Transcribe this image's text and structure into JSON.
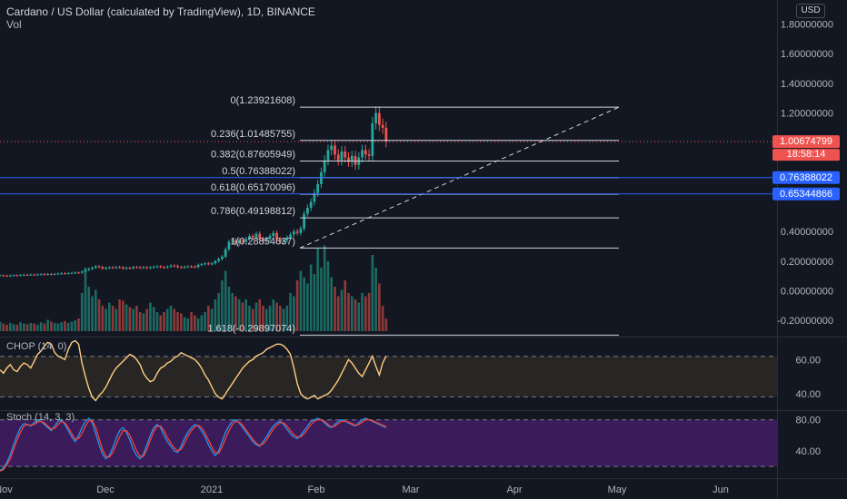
{
  "header": {
    "title": "Cardano / US Dollar (calculated by TradingView), 1D, BINANCE",
    "vol_label": "Vol",
    "currency": "USD"
  },
  "colors": {
    "background": "#131722",
    "up": "#26a69a",
    "down": "#ef5350",
    "blue_line": "#2962ff",
    "choppiness": "#ffcc80",
    "stoch_k": "#2196f3",
    "stoch_d": "#f44336",
    "stoch_band": "#4a1e6e"
  },
  "price_badges": {
    "last_price": "1.00674799",
    "countdown": "18:58:14",
    "level1": "0.76388022",
    "level2": "0.65344866"
  },
  "indicators": {
    "chop_label": "CHOP (14, 0)",
    "stoch_label": "Stoch (14, 3, 3)"
  },
  "chart_data": [
    {
      "type": "candlestick",
      "symbol": "ADAUSD",
      "interval": "1D",
      "ylim": [
        -0.3,
        1.9
      ],
      "y_ticks": [
        "1.80000000",
        "1.60000000",
        "1.40000000",
        "1.20000000",
        "0.40000000",
        "0.20000000",
        "0.00000000",
        "-0.20000000"
      ],
      "x_ticks": [
        "Nov",
        "Dec",
        "2021",
        "Feb",
        "Mar",
        "Apr",
        "May",
        "Jun"
      ],
      "fib_levels": [
        {
          "label": "0(1.23921608)",
          "value": 1.23921608
        },
        {
          "label": "0.236(1.01485755)",
          "value": 1.01485755
        },
        {
          "label": "0.382(0.87605949)",
          "value": 0.87605949
        },
        {
          "label": "0.5(0.76388022)",
          "value": 0.76388022
        },
        {
          "label": "0.618(0.65170096)",
          "value": 0.65170096
        },
        {
          "label": "0.786(0.49198812)",
          "value": 0.49198812
        },
        {
          "label": "1(0.28854637)",
          "value": 0.28854637
        },
        {
          "label": "1.618(-0.29897074)",
          "value": -0.29897074
        }
      ],
      "horizontal_lines": [
        0.76388022,
        0.65344866
      ],
      "last_price": 1.00674799,
      "closes": [
        0.104,
        0.102,
        0.101,
        0.103,
        0.105,
        0.104,
        0.106,
        0.108,
        0.107,
        0.109,
        0.108,
        0.11,
        0.112,
        0.111,
        0.113,
        0.112,
        0.114,
        0.116,
        0.118,
        0.117,
        0.119,
        0.121,
        0.123,
        0.122,
        0.13,
        0.14,
        0.148,
        0.156,
        0.165,
        0.16,
        0.15,
        0.155,
        0.158,
        0.155,
        0.16,
        0.158,
        0.15,
        0.155,
        0.152,
        0.16,
        0.158,
        0.156,
        0.159,
        0.154,
        0.158,
        0.162,
        0.165,
        0.16,
        0.158,
        0.163,
        0.17,
        0.168,
        0.16,
        0.158,
        0.162,
        0.165,
        0.163,
        0.16,
        0.175,
        0.18,
        0.185,
        0.18,
        0.185,
        0.2,
        0.215,
        0.23,
        0.28,
        0.33,
        0.34,
        0.32,
        0.34,
        0.33,
        0.35,
        0.37,
        0.36,
        0.385,
        0.35,
        0.335,
        0.35,
        0.37,
        0.39,
        0.35,
        0.33,
        0.34,
        0.36,
        0.38,
        0.4,
        0.39,
        0.42,
        0.52,
        0.56,
        0.6,
        0.66,
        0.72,
        0.8,
        0.88,
        0.95,
        0.98,
        0.92,
        0.88,
        0.94,
        0.9,
        0.87,
        0.91,
        0.85,
        0.9,
        0.95,
        0.92,
        0.91,
        1.13,
        1.2,
        1.12,
        1.1,
        1.007
      ],
      "volumes": [
        0.15,
        0.12,
        0.1,
        0.13,
        0.11,
        0.1,
        0.14,
        0.12,
        0.11,
        0.13,
        0.12,
        0.1,
        0.14,
        0.12,
        0.18,
        0.15,
        0.13,
        0.12,
        0.14,
        0.16,
        0.13,
        0.15,
        0.17,
        0.2,
        0.6,
        1.0,
        0.7,
        0.55,
        0.65,
        0.5,
        0.4,
        0.35,
        0.45,
        0.4,
        0.35,
        0.5,
        0.48,
        0.42,
        0.38,
        0.35,
        0.4,
        0.3,
        0.28,
        0.35,
        0.45,
        0.38,
        0.3,
        0.25,
        0.3,
        0.35,
        0.4,
        0.35,
        0.3,
        0.28,
        0.22,
        0.2,
        0.3,
        0.25,
        0.2,
        0.25,
        0.3,
        0.4,
        0.35,
        0.5,
        0.6,
        0.8,
        0.95,
        0.7,
        0.6,
        0.55,
        0.5,
        0.45,
        0.5,
        0.4,
        0.35,
        0.45,
        0.5,
        0.4,
        0.35,
        0.4,
        0.5,
        0.45,
        0.4,
        0.35,
        0.4,
        0.6,
        0.55,
        0.8,
        0.95,
        0.85,
        0.75,
        1.05,
        0.9,
        1.3,
        1.0,
        1.35,
        1.1,
        0.85,
        0.7,
        0.55,
        0.65,
        0.8,
        0.6,
        0.55,
        0.5,
        0.45,
        0.6,
        0.55,
        0.6,
        1.2,
        1.0,
        0.75,
        0.4,
        0.2
      ]
    },
    {
      "type": "line",
      "name": "CHOP (14, 0)",
      "ylim": [
        30,
        72
      ],
      "y_ticks": [
        "60.00",
        "40.00"
      ],
      "bands": [
        61.8,
        38.2
      ],
      "values": [
        54,
        52,
        55,
        57,
        54,
        53,
        56,
        58,
        57,
        55,
        59,
        63,
        65,
        68,
        70,
        69,
        64,
        62,
        61,
        60,
        66,
        70,
        71,
        69,
        58,
        50,
        43,
        38,
        36,
        39,
        41,
        44,
        48,
        52,
        55,
        57,
        59,
        61,
        63,
        62,
        60,
        57,
        52,
        49,
        47,
        48,
        52,
        55,
        56,
        58,
        59,
        61,
        62,
        64,
        63,
        62,
        61,
        60,
        58,
        55,
        51,
        48,
        44,
        40,
        38,
        37,
        40,
        43,
        46,
        49,
        52,
        55,
        57,
        59,
        60,
        62,
        63,
        64,
        66,
        67,
        68,
        69,
        69,
        68,
        66,
        63,
        55,
        46,
        40,
        38,
        37,
        38,
        39,
        37,
        38,
        39,
        40,
        42,
        45,
        48,
        52,
        56,
        60,
        58,
        55,
        52,
        50,
        54,
        58,
        62,
        56,
        51,
        58,
        62
      ]
    },
    {
      "type": "line",
      "name": "Stoch (14, 3, 3)",
      "ylim": [
        0,
        100
      ],
      "y_ticks": [
        "80.00",
        "40.00"
      ],
      "bands": [
        80,
        20
      ],
      "series": [
        {
          "name": "%K",
          "values": [
            15,
            18,
            25,
            35,
            48,
            60,
            70,
            75,
            74,
            72,
            76,
            80,
            78,
            74,
            70,
            66,
            72,
            78,
            80,
            74,
            66,
            58,
            52,
            60,
            70,
            78,
            82,
            76,
            62,
            48,
            36,
            30,
            34,
            44,
            56,
            66,
            70,
            64,
            54,
            42,
            34,
            30,
            36,
            48,
            60,
            70,
            74,
            70,
            60,
            52,
            46,
            40,
            38,
            46,
            56,
            64,
            70,
            74,
            72,
            66,
            58,
            48,
            40,
            34,
            40,
            52,
            64,
            72,
            78,
            80,
            76,
            70,
            64,
            58,
            52,
            48,
            46,
            52,
            58,
            66,
            72,
            76,
            78,
            74,
            68,
            62,
            58,
            56,
            60,
            66,
            72,
            78,
            80,
            82,
            80,
            76,
            72,
            70,
            74,
            78,
            80,
            78,
            76,
            74,
            72,
            76,
            80,
            82,
            80,
            78,
            76,
            74,
            72,
            70
          ]
        },
        {
          "name": "%D",
          "values": [
            14,
            16,
            22,
            30,
            42,
            54,
            64,
            72,
            74,
            73,
            74,
            77,
            78,
            76,
            72,
            68,
            69,
            74,
            78,
            76,
            70,
            62,
            55,
            56,
            62,
            72,
            79,
            79,
            70,
            56,
            42,
            33,
            32,
            38,
            48,
            58,
            66,
            66,
            60,
            50,
            40,
            33,
            33,
            42,
            54,
            65,
            72,
            72,
            66,
            57,
            50,
            44,
            40,
            42,
            50,
            59,
            66,
            71,
            73,
            70,
            63,
            54,
            45,
            38,
            37,
            45,
            56,
            66,
            74,
            78,
            77,
            73,
            67,
            61,
            55,
            50,
            47,
            49,
            54,
            61,
            68,
            73,
            76,
            76,
            72,
            66,
            61,
            58,
            58,
            62,
            68,
            74,
            78,
            80,
            80,
            78,
            74,
            71,
            72,
            75,
            78,
            78,
            77,
            75,
            73,
            74,
            77,
            80,
            80,
            79,
            77,
            75,
            73,
            71
          ]
        }
      ]
    }
  ]
}
